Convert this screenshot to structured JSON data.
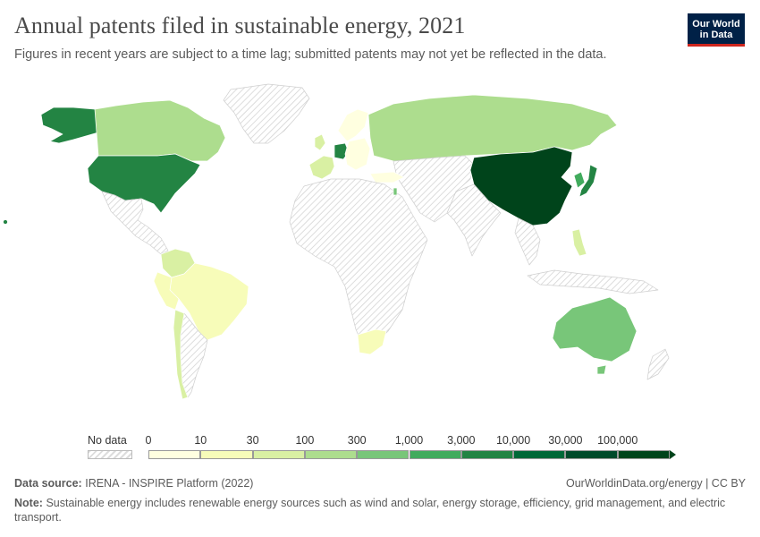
{
  "header": {
    "title": "Annual patents filed in sustainable energy, 2021",
    "subtitle": "Figures in recent years are subject to a time lag; submitted patents may not yet be reflected in the data."
  },
  "logo": {
    "line1": "Our World",
    "line2": "in Data"
  },
  "legend": {
    "nodata_label": "No data",
    "ticks": [
      "0",
      "10",
      "30",
      "100",
      "300",
      "1,000",
      "3,000",
      "10,000",
      "30,000",
      "100,000"
    ],
    "bin_colors": [
      "#ffffe0",
      "#f7fcb9",
      "#d9f0a3",
      "#addd8e",
      "#78c679",
      "#41ab5d",
      "#238443",
      "#006837",
      "#004a2a",
      "#00441b"
    ]
  },
  "colors": {
    "nodata": "#e8e8e8",
    "border": "#ffffff",
    "ocean": "#ffffff"
  },
  "map_regions": {
    "china": "#00441b",
    "usa": "#238443",
    "japan": "#238443",
    "south_korea": "#41ab5d",
    "germany": "#238443",
    "alaska": "#238443",
    "canada": "#addd8e",
    "russia": "#addd8e",
    "australia": "#78c679",
    "europe_west": "#d9f0a3",
    "brazil": "#f7fcb9",
    "colombia": "#d9f0a3",
    "south_africa": "#f7fcb9",
    "chile": "#d9f0a3",
    "argentina": "#e8e8e8"
  },
  "footer": {
    "source_label": "Data source:",
    "source_text": "IRENA - INSPIRE Platform (2022)",
    "right_text": "OurWorldinData.org/energy | CC BY",
    "note_label": "Note:",
    "note_text": "Sustainable energy includes renewable energy sources such as wind and solar, energy storage, efficiency, grid management, and electric transport."
  }
}
